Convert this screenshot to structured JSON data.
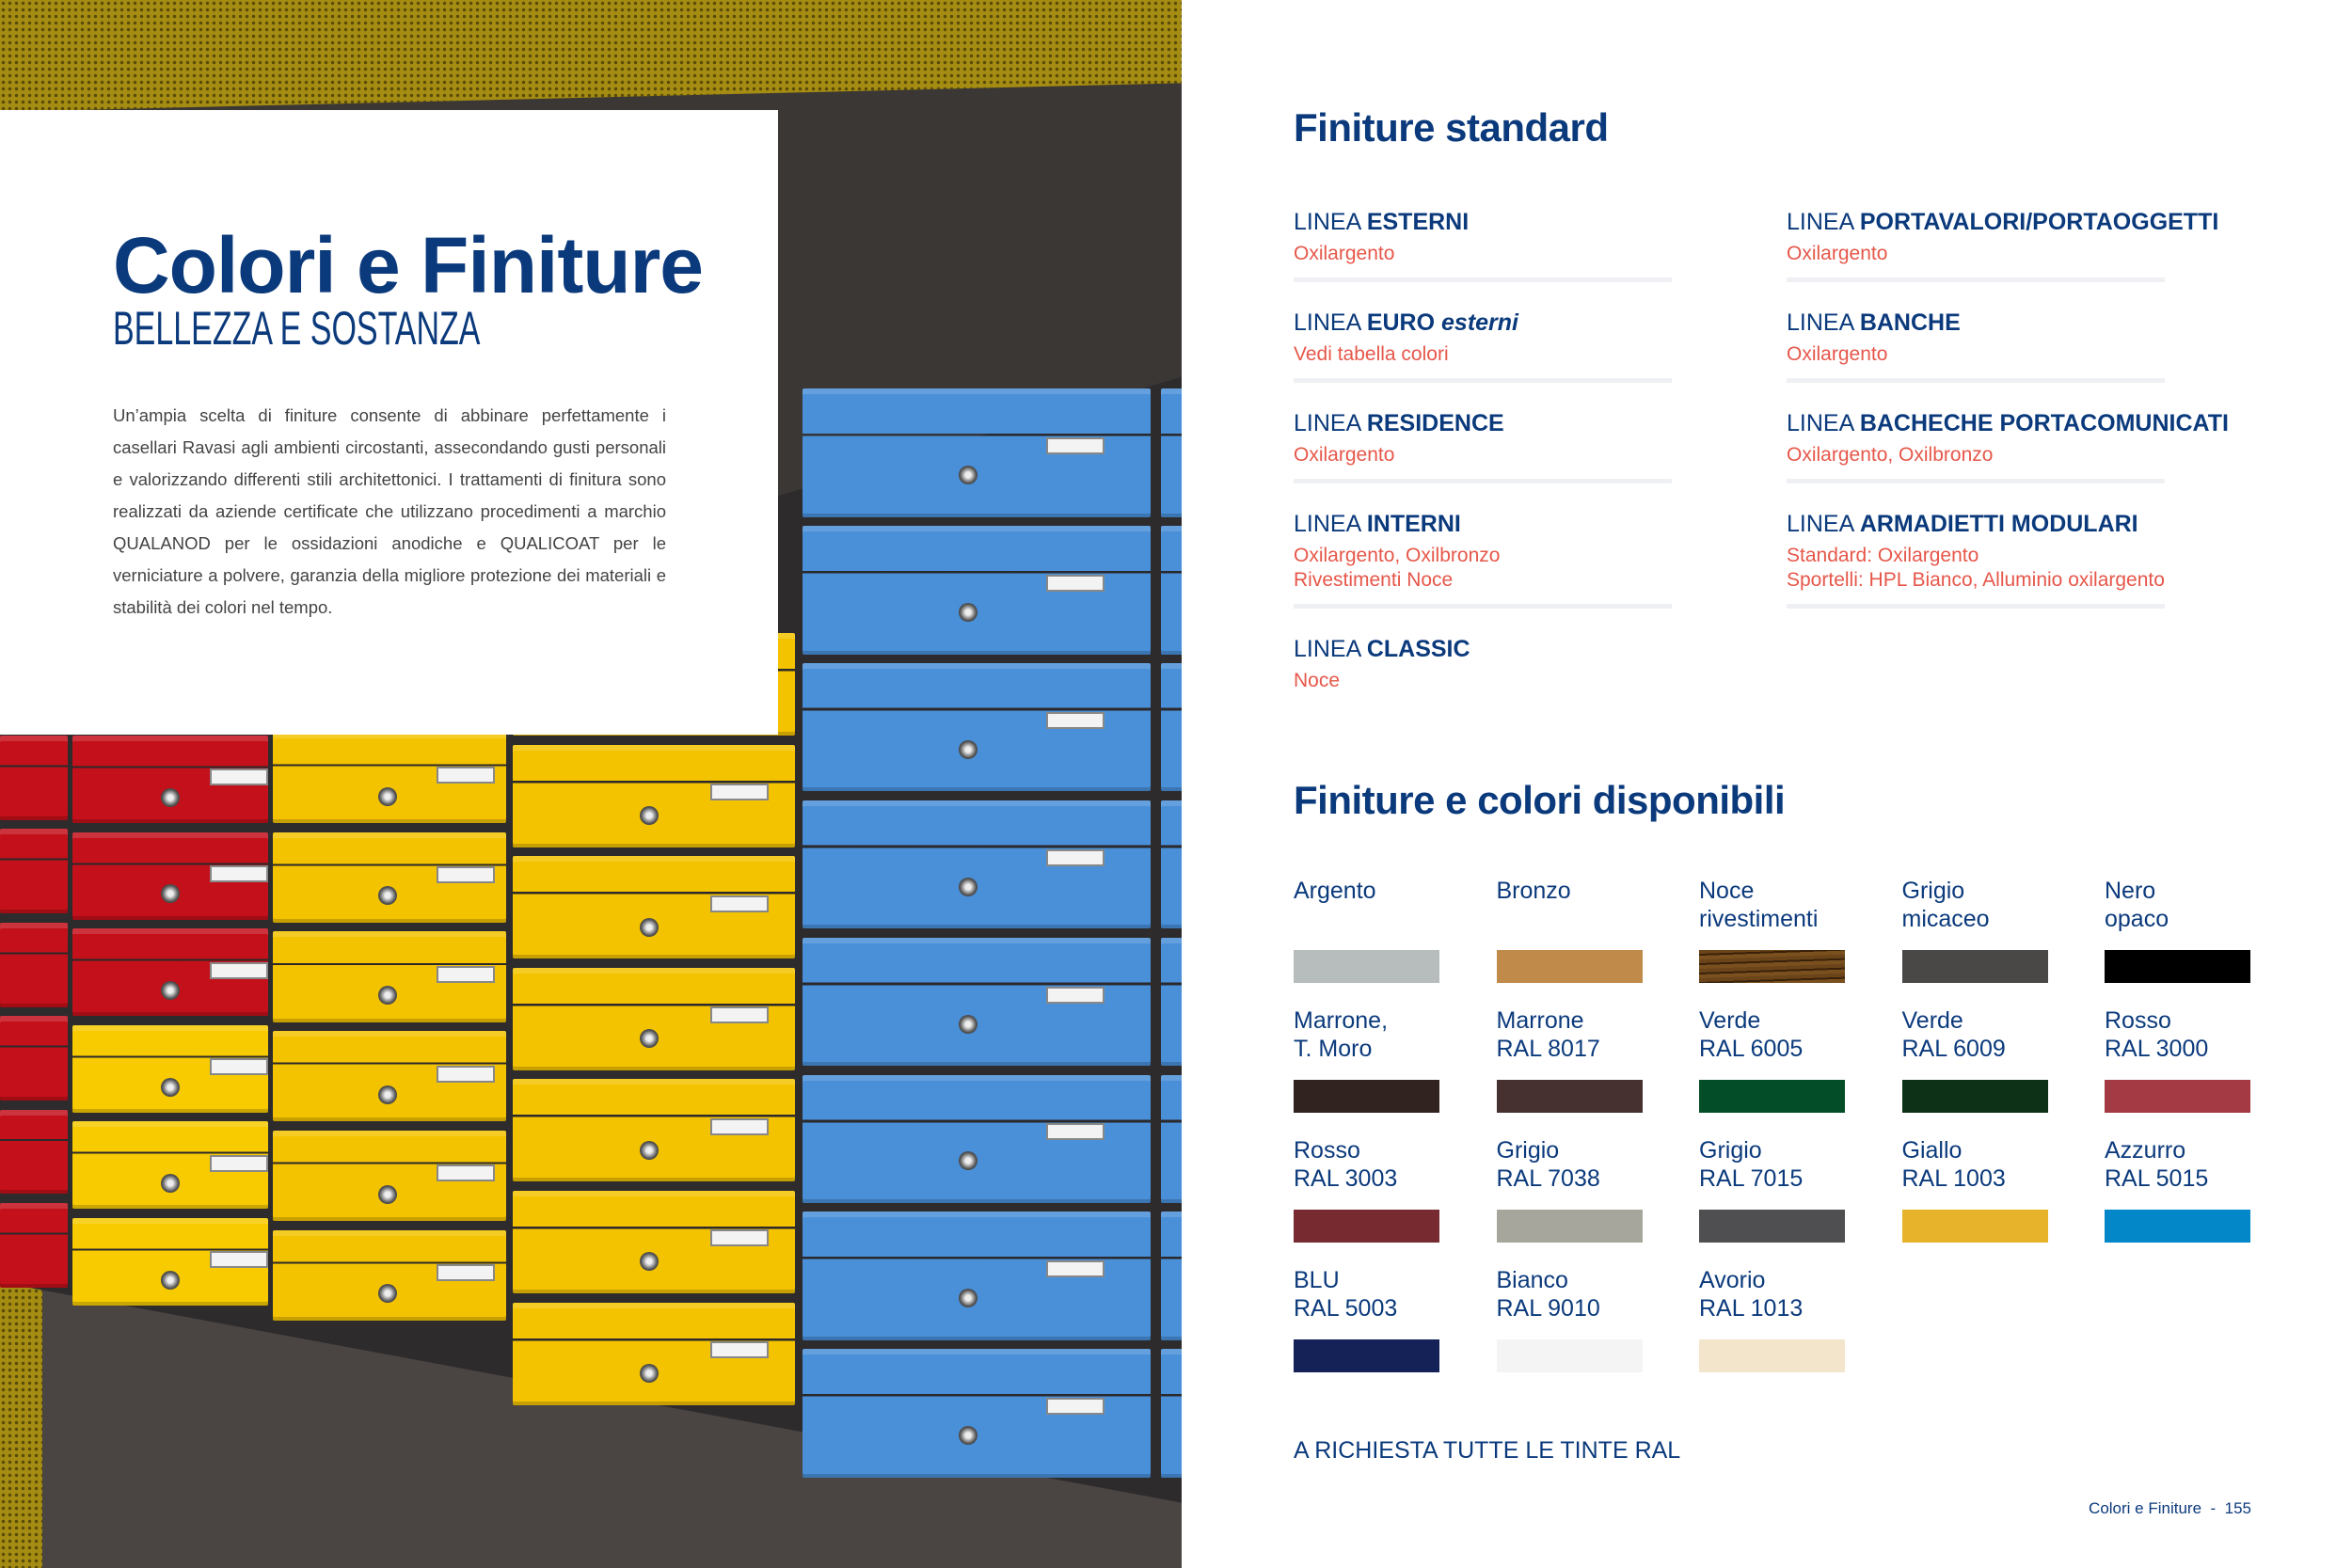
{
  "left_page": {
    "title": "Colori e Finiture",
    "subtitle": "BELLEZZA E SOSTANZA",
    "intro": "Un’ampia scelta di finiture consente di abbinare perfettamente i casellari Ravasi agli ambienti circostanti, assecondando gusti personali e valorizzando differenti stili architettonici. I trattamenti di finitura sono realizzati da aziende certificate che utilizzano procedimenti a marchio QUALANOD per le ossidazioni anodiche e QUALICOAT per le verniciature a polvere, garanzia della migliore protezione dei materiali e stabilità dei colori nel tempo.",
    "photo": "colored-mailboxes-photo"
  },
  "standard": {
    "title": "Finiture standard",
    "columns": [
      [
        {
          "prefix": "LINEA ",
          "name": "ESTERNI",
          "name_suffix": "",
          "lines": [
            "Oxilargento"
          ],
          "rule": true
        },
        {
          "prefix": "LINEA ",
          "name": "EURO",
          "name_suffix": " esterni",
          "lines": [
            "Vedi tabella colori"
          ],
          "rule": true
        },
        {
          "prefix": "LINEA ",
          "name": "RESIDENCE",
          "name_suffix": "",
          "lines": [
            "Oxilargento"
          ],
          "rule": true
        },
        {
          "prefix": "LINEA ",
          "name": "INTERNI",
          "name_suffix": "",
          "lines": [
            "Oxilargento, Oxilbronzo",
            "Rivestimenti Noce"
          ],
          "rule": true
        },
        {
          "prefix": "LINEA ",
          "name": "CLASSIC",
          "name_suffix": "",
          "lines": [
            "Noce"
          ],
          "rule": false
        }
      ],
      [
        {
          "prefix": "LINEA ",
          "name": "PORTAVALORI/PORTAOGGETTI",
          "name_suffix": "",
          "lines": [
            "Oxilargento"
          ],
          "rule": true
        },
        {
          "prefix": "LINEA ",
          "name": "BANCHE",
          "name_suffix": "",
          "lines": [
            "Oxilargento"
          ],
          "rule": true
        },
        {
          "prefix": "LINEA ",
          "name": "BACHECHE PORTACOMUNICATI",
          "name_suffix": "",
          "lines": [
            "Oxilargento, Oxilbronzo"
          ],
          "rule": true
        },
        {
          "prefix": "LINEA ",
          "name": "ARMADIETTI MODULARI",
          "name_suffix": "",
          "lines": [
            "Standard: Oxilargento",
            "Sportelli: HPL Bianco, Alluminio oxilargento"
          ],
          "rule": true
        }
      ]
    ]
  },
  "colors": {
    "title": "Finiture e colori disponibili",
    "swatches": [
      {
        "line1": "Argento",
        "line2": "",
        "color": "#b7bcbc"
      },
      {
        "line1": "Bronzo",
        "line2": "",
        "color": "#bf8a4a"
      },
      {
        "line1": "Noce",
        "line2": "rivestimenti",
        "color": "#6b4419",
        "texture": "wood"
      },
      {
        "line1": "Grigio",
        "line2": "micaceo",
        "color": "#4a4846"
      },
      {
        "line1": "Nero",
        "line2": "opaco",
        "color": "#000000"
      },
      {
        "line1": "Marrone,",
        "line2": "T. Moro",
        "color": "#312320"
      },
      {
        "line1": "Marrone",
        "line2": "RAL 8017",
        "color": "#473030"
      },
      {
        "line1": "Verde",
        "line2": "RAL 6005",
        "color": "#034d28"
      },
      {
        "line1": "Verde",
        "line2": "RAL 6009",
        "color": "#0c3117"
      },
      {
        "line1": "Rosso",
        "line2": "RAL 3000",
        "color": "#a43a43"
      },
      {
        "line1": "Rosso",
        "line2": "RAL 3003",
        "color": "#772b31"
      },
      {
        "line1": "Grigio",
        "line2": "RAL 7038",
        "color": "#a6a69d"
      },
      {
        "line1": "Grigio",
        "line2": "RAL 7015",
        "color": "#4f4e50"
      },
      {
        "line1": "Giallo",
        "line2": "RAL 1003",
        "color": "#e6b32b"
      },
      {
        "line1": "Azzurro",
        "line2": "RAL 5015",
        "color": "#0387c9"
      },
      {
        "line1": "BLU",
        "line2": "RAL 5003",
        "color": "#142258"
      },
      {
        "line1": "Bianco",
        "line2": "RAL 9010",
        "color": "#f5f4f4"
      },
      {
        "line1": "Avorio",
        "line2": "RAL 1013",
        "color": "#f3e5cc"
      }
    ],
    "note": "A RICHIESTA TUTTE LE TINTE RAL"
  },
  "footer": {
    "section": "Colori e Finiture",
    "separator": "-",
    "page": "155"
  },
  "palette": {
    "brand_blue": "#0b3a7c",
    "accent_red": "#e6574a",
    "rule": "#eef0f3"
  }
}
